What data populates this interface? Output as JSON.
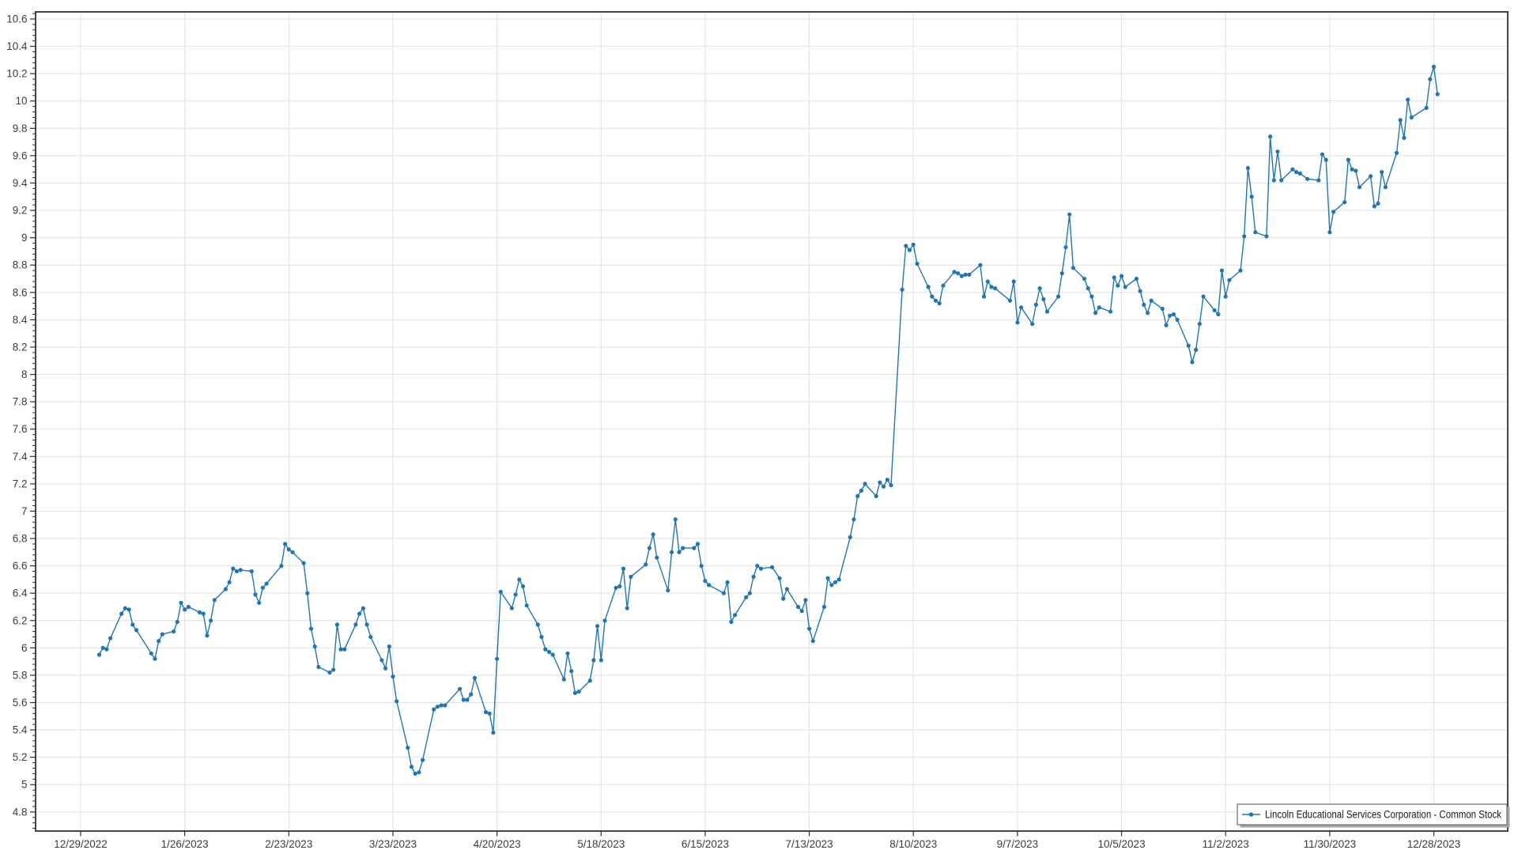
{
  "chart_data": {
    "type": "line",
    "title": "",
    "xlabel": "",
    "ylabel": "",
    "grid": true,
    "background": "#ffffff",
    "legend_position": "bottom-right",
    "colors": {
      "line": "#2076b4",
      "grid": "#e2e2e2",
      "axis": "#303030",
      "tick_text": "#3c3c3c",
      "legend_border": "#6b6b6b",
      "legend_shadow": "#a8a8a8",
      "legend_text": "#1a1a1a"
    },
    "y_axis": {
      "min": 4.8,
      "max": 10.6,
      "step": 0.2,
      "minor_step": 0.04,
      "ylim": [
        4.66,
        10.66
      ],
      "tick_labels": [
        "10.6",
        "10.4",
        "10.2",
        "10",
        "9.8",
        "9.6",
        "9.4",
        "9.2",
        "9",
        "8.8",
        "8.6",
        "8.4",
        "8.2",
        "8",
        "7.8",
        "7.6",
        "7.4",
        "7.2",
        "7",
        "6.8",
        "6.6",
        "6.4",
        "6.2",
        "6",
        "5.8",
        "5.6",
        "5.4",
        "5.2",
        "5",
        "4.8"
      ]
    },
    "x_axis": {
      "start_date": "2022-12-29",
      "tick_interval_days": 28,
      "tick_labels": [
        "12/29/2022",
        "1/26/2023",
        "2/23/2023",
        "3/23/2023",
        "4/20/2023",
        "5/18/2023",
        "6/15/2023",
        "7/13/2023",
        "8/10/2023",
        "9/7/2023",
        "10/5/2023",
        "11/2/2023",
        "11/30/2023",
        "12/28/2023"
      ]
    },
    "series": [
      {
        "name": "Lincoln Educational Services Corporation - Common Stock",
        "color": "#2076b4",
        "marker": "circle",
        "points": [
          [
            "2023-01-03",
            5.95
          ],
          [
            "2023-01-04",
            6.0
          ],
          [
            "2023-01-05",
            5.99
          ],
          [
            "2023-01-06",
            6.07
          ],
          [
            "2023-01-09",
            6.25
          ],
          [
            "2023-01-10",
            6.29
          ],
          [
            "2023-01-11",
            6.28
          ],
          [
            "2023-01-12",
            6.17
          ],
          [
            "2023-01-13",
            6.13
          ],
          [
            "2023-01-17",
            5.96
          ],
          [
            "2023-01-18",
            5.92
          ],
          [
            "2023-01-19",
            6.05
          ],
          [
            "2023-01-20",
            6.1
          ],
          [
            "2023-01-23",
            6.12
          ],
          [
            "2023-01-24",
            6.19
          ],
          [
            "2023-01-25",
            6.33
          ],
          [
            "2023-01-26",
            6.28
          ],
          [
            "2023-01-27",
            6.3
          ],
          [
            "2023-01-30",
            6.26
          ],
          [
            "2023-01-31",
            6.25
          ],
          [
            "2023-02-01",
            6.09
          ],
          [
            "2023-02-02",
            6.2
          ],
          [
            "2023-02-03",
            6.35
          ],
          [
            "2023-02-06",
            6.43
          ],
          [
            "2023-02-07",
            6.48
          ],
          [
            "2023-02-08",
            6.58
          ],
          [
            "2023-02-09",
            6.56
          ],
          [
            "2023-02-10",
            6.57
          ],
          [
            "2023-02-13",
            6.56
          ],
          [
            "2023-02-14",
            6.39
          ],
          [
            "2023-02-15",
            6.33
          ],
          [
            "2023-02-16",
            6.44
          ],
          [
            "2023-02-17",
            6.47
          ],
          [
            "2023-02-21",
            6.6
          ],
          [
            "2023-02-22",
            6.76
          ],
          [
            "2023-02-23",
            6.72
          ],
          [
            "2023-02-24",
            6.7
          ],
          [
            "2023-02-27",
            6.62
          ],
          [
            "2023-02-28",
            6.4
          ],
          [
            "2023-03-01",
            6.14
          ],
          [
            "2023-03-02",
            6.01
          ],
          [
            "2023-03-03",
            5.86
          ],
          [
            "2023-03-06",
            5.82
          ],
          [
            "2023-03-07",
            5.84
          ],
          [
            "2023-03-08",
            6.17
          ],
          [
            "2023-03-09",
            5.99
          ],
          [
            "2023-03-10",
            5.99
          ],
          [
            "2023-03-13",
            6.17
          ],
          [
            "2023-03-14",
            6.25
          ],
          [
            "2023-03-15",
            6.29
          ],
          [
            "2023-03-16",
            6.17
          ],
          [
            "2023-03-17",
            6.08
          ],
          [
            "2023-03-20",
            5.91
          ],
          [
            "2023-03-21",
            5.85
          ],
          [
            "2023-03-22",
            6.01
          ],
          [
            "2023-03-23",
            5.79
          ],
          [
            "2023-03-24",
            5.61
          ],
          [
            "2023-03-27",
            5.27
          ],
          [
            "2023-03-28",
            5.13
          ],
          [
            "2023-03-29",
            5.08
          ],
          [
            "2023-03-30",
            5.09
          ],
          [
            "2023-03-31",
            5.18
          ],
          [
            "2023-04-03",
            5.55
          ],
          [
            "2023-04-04",
            5.57
          ],
          [
            "2023-04-05",
            5.58
          ],
          [
            "2023-04-06",
            5.58
          ],
          [
            "2023-04-10",
            5.7
          ],
          [
            "2023-04-11",
            5.62
          ],
          [
            "2023-04-12",
            5.62
          ],
          [
            "2023-04-13",
            5.66
          ],
          [
            "2023-04-14",
            5.78
          ],
          [
            "2023-04-17",
            5.53
          ],
          [
            "2023-04-18",
            5.52
          ],
          [
            "2023-04-19",
            5.38
          ],
          [
            "2023-04-20",
            5.92
          ],
          [
            "2023-04-21",
            6.41
          ],
          [
            "2023-04-24",
            6.29
          ],
          [
            "2023-04-25",
            6.39
          ],
          [
            "2023-04-26",
            6.5
          ],
          [
            "2023-04-27",
            6.45
          ],
          [
            "2023-04-28",
            6.31
          ],
          [
            "2023-05-01",
            6.17
          ],
          [
            "2023-05-02",
            6.08
          ],
          [
            "2023-05-03",
            5.99
          ],
          [
            "2023-05-04",
            5.97
          ],
          [
            "2023-05-05",
            5.95
          ],
          [
            "2023-05-08",
            5.77
          ],
          [
            "2023-05-09",
            5.96
          ],
          [
            "2023-05-10",
            5.83
          ],
          [
            "2023-05-11",
            5.67
          ],
          [
            "2023-05-12",
            5.68
          ],
          [
            "2023-05-15",
            5.76
          ],
          [
            "2023-05-16",
            5.91
          ],
          [
            "2023-05-17",
            6.16
          ],
          [
            "2023-05-18",
            5.91
          ],
          [
            "2023-05-19",
            6.2
          ],
          [
            "2023-05-22",
            6.44
          ],
          [
            "2023-05-23",
            6.45
          ],
          [
            "2023-05-24",
            6.58
          ],
          [
            "2023-05-25",
            6.29
          ],
          [
            "2023-05-26",
            6.52
          ],
          [
            "2023-05-30",
            6.61
          ],
          [
            "2023-05-31",
            6.73
          ],
          [
            "2023-06-01",
            6.83
          ],
          [
            "2023-06-02",
            6.66
          ],
          [
            "2023-06-05",
            6.42
          ],
          [
            "2023-06-06",
            6.7
          ],
          [
            "2023-06-07",
            6.94
          ],
          [
            "2023-06-08",
            6.7
          ],
          [
            "2023-06-09",
            6.73
          ],
          [
            "2023-06-12",
            6.73
          ],
          [
            "2023-06-13",
            6.76
          ],
          [
            "2023-06-14",
            6.6
          ],
          [
            "2023-06-15",
            6.49
          ],
          [
            "2023-06-16",
            6.46
          ],
          [
            "2023-06-20",
            6.4
          ],
          [
            "2023-06-21",
            6.48
          ],
          [
            "2023-06-22",
            6.19
          ],
          [
            "2023-06-23",
            6.24
          ],
          [
            "2023-06-26",
            6.37
          ],
          [
            "2023-06-27",
            6.4
          ],
          [
            "2023-06-28",
            6.52
          ],
          [
            "2023-06-29",
            6.6
          ],
          [
            "2023-06-30",
            6.58
          ],
          [
            "2023-07-03",
            6.59
          ],
          [
            "2023-07-05",
            6.51
          ],
          [
            "2023-07-06",
            6.36
          ],
          [
            "2023-07-07",
            6.43
          ],
          [
            "2023-07-10",
            6.3
          ],
          [
            "2023-07-11",
            6.27
          ],
          [
            "2023-07-12",
            6.35
          ],
          [
            "2023-07-13",
            6.14
          ],
          [
            "2023-07-14",
            6.05
          ],
          [
            "2023-07-17",
            6.3
          ],
          [
            "2023-07-18",
            6.51
          ],
          [
            "2023-07-19",
            6.46
          ],
          [
            "2023-07-20",
            6.48
          ],
          [
            "2023-07-21",
            6.5
          ],
          [
            "2023-07-24",
            6.81
          ],
          [
            "2023-07-25",
            6.94
          ],
          [
            "2023-07-26",
            7.11
          ],
          [
            "2023-07-27",
            7.15
          ],
          [
            "2023-07-28",
            7.2
          ],
          [
            "2023-07-31",
            7.11
          ],
          [
            "2023-08-01",
            7.21
          ],
          [
            "2023-08-02",
            7.18
          ],
          [
            "2023-08-03",
            7.23
          ],
          [
            "2023-08-04",
            7.19
          ],
          [
            "2023-08-07",
            8.62
          ],
          [
            "2023-08-08",
            8.94
          ],
          [
            "2023-08-09",
            8.91
          ],
          [
            "2023-08-10",
            8.95
          ],
          [
            "2023-08-11",
            8.81
          ],
          [
            "2023-08-14",
            8.64
          ],
          [
            "2023-08-15",
            8.57
          ],
          [
            "2023-08-16",
            8.54
          ],
          [
            "2023-08-17",
            8.52
          ],
          [
            "2023-08-18",
            8.65
          ],
          [
            "2023-08-21",
            8.75
          ],
          [
            "2023-08-22",
            8.74
          ],
          [
            "2023-08-23",
            8.72
          ],
          [
            "2023-08-24",
            8.73
          ],
          [
            "2023-08-25",
            8.73
          ],
          [
            "2023-08-28",
            8.8
          ],
          [
            "2023-08-29",
            8.57
          ],
          [
            "2023-08-30",
            8.68
          ],
          [
            "2023-08-31",
            8.64
          ],
          [
            "2023-09-01",
            8.63
          ],
          [
            "2023-09-05",
            8.54
          ],
          [
            "2023-09-06",
            8.68
          ],
          [
            "2023-09-07",
            8.38
          ],
          [
            "2023-09-08",
            8.49
          ],
          [
            "2023-09-11",
            8.37
          ],
          [
            "2023-09-12",
            8.51
          ],
          [
            "2023-09-13",
            8.63
          ],
          [
            "2023-09-14",
            8.55
          ],
          [
            "2023-09-15",
            8.46
          ],
          [
            "2023-09-18",
            8.57
          ],
          [
            "2023-09-19",
            8.74
          ],
          [
            "2023-09-20",
            8.93
          ],
          [
            "2023-09-21",
            9.17
          ],
          [
            "2023-09-22",
            8.78
          ],
          [
            "2023-09-25",
            8.7
          ],
          [
            "2023-09-26",
            8.63
          ],
          [
            "2023-09-27",
            8.57
          ],
          [
            "2023-09-28",
            8.45
          ],
          [
            "2023-09-29",
            8.49
          ],
          [
            "2023-10-02",
            8.46
          ],
          [
            "2023-10-03",
            8.71
          ],
          [
            "2023-10-04",
            8.65
          ],
          [
            "2023-10-05",
            8.72
          ],
          [
            "2023-10-06",
            8.64
          ],
          [
            "2023-10-09",
            8.7
          ],
          [
            "2023-10-10",
            8.61
          ],
          [
            "2023-10-11",
            8.51
          ],
          [
            "2023-10-12",
            8.45
          ],
          [
            "2023-10-13",
            8.54
          ],
          [
            "2023-10-16",
            8.48
          ],
          [
            "2023-10-17",
            8.36
          ],
          [
            "2023-10-18",
            8.43
          ],
          [
            "2023-10-19",
            8.44
          ],
          [
            "2023-10-20",
            8.4
          ],
          [
            "2023-10-23",
            8.21
          ],
          [
            "2023-10-24",
            8.09
          ],
          [
            "2023-10-25",
            8.18
          ],
          [
            "2023-10-26",
            8.37
          ],
          [
            "2023-10-27",
            8.57
          ],
          [
            "2023-10-30",
            8.47
          ],
          [
            "2023-10-31",
            8.44
          ],
          [
            "2023-11-01",
            8.76
          ],
          [
            "2023-11-02",
            8.57
          ],
          [
            "2023-11-03",
            8.69
          ],
          [
            "2023-11-06",
            8.76
          ],
          [
            "2023-11-07",
            9.01
          ],
          [
            "2023-11-08",
            9.51
          ],
          [
            "2023-11-09",
            9.3
          ],
          [
            "2023-11-10",
            9.04
          ],
          [
            "2023-11-13",
            9.01
          ],
          [
            "2023-11-14",
            9.74
          ],
          [
            "2023-11-15",
            9.42
          ],
          [
            "2023-11-16",
            9.63
          ],
          [
            "2023-11-17",
            9.42
          ],
          [
            "2023-11-20",
            9.5
          ],
          [
            "2023-11-21",
            9.48
          ],
          [
            "2023-11-22",
            9.47
          ],
          [
            "2023-11-24",
            9.43
          ],
          [
            "2023-11-27",
            9.42
          ],
          [
            "2023-11-28",
            9.61
          ],
          [
            "2023-11-29",
            9.57
          ],
          [
            "2023-11-30",
            9.04
          ],
          [
            "2023-12-01",
            9.19
          ],
          [
            "2023-12-04",
            9.26
          ],
          [
            "2023-12-05",
            9.57
          ],
          [
            "2023-12-06",
            9.5
          ],
          [
            "2023-12-07",
            9.49
          ],
          [
            "2023-12-08",
            9.37
          ],
          [
            "2023-12-11",
            9.45
          ],
          [
            "2023-12-12",
            9.23
          ],
          [
            "2023-12-13",
            9.25
          ],
          [
            "2023-12-14",
            9.48
          ],
          [
            "2023-12-15",
            9.37
          ],
          [
            "2023-12-18",
            9.62
          ],
          [
            "2023-12-19",
            9.86
          ],
          [
            "2023-12-20",
            9.73
          ],
          [
            "2023-12-21",
            10.01
          ],
          [
            "2023-12-22",
            9.88
          ],
          [
            "2023-12-26",
            9.95
          ],
          [
            "2023-12-27",
            10.16
          ],
          [
            "2023-12-28",
            10.25
          ],
          [
            "2023-12-29",
            10.05
          ]
        ]
      }
    ]
  },
  "legend": {
    "label": "Lincoln Educational Services Corporation - Common Stock"
  }
}
